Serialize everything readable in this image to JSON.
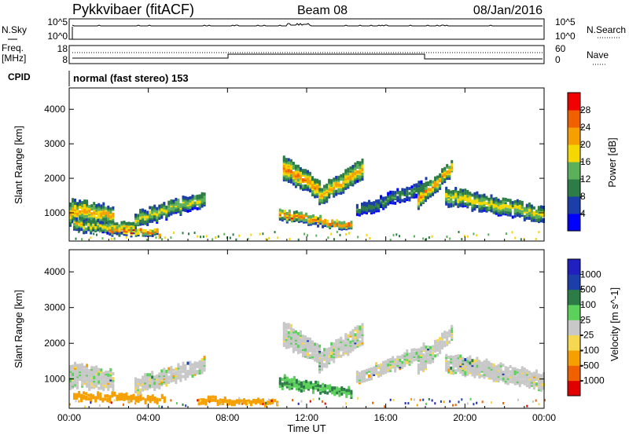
{
  "header": {
    "station": "Pykkvibaer (fitACF)",
    "beam": "Beam 08",
    "date": "08/Jan/2016"
  },
  "noise_panel": {
    "left_label": "N.Sky",
    "left_ticks": [
      "10^5",
      "10^0"
    ],
    "right_label": "N.Search",
    "right_ticks": [
      "10^5",
      "10^0"
    ]
  },
  "freq_panel": {
    "left_label_1": "Freq.",
    "left_label_2": "[MHz]",
    "left_ticks": [
      "18",
      "8"
    ],
    "right_label": "Nave",
    "right_ticks": [
      "60",
      "0"
    ]
  },
  "cpid": {
    "label": "CPID",
    "text": "normal (fast stereo) 153"
  },
  "colors": {
    "power_scale": [
      "#0000ff",
      "#1c3ea8",
      "#2d7b46",
      "#5db05a",
      "#f5d800",
      "#f5a000",
      "#f06000",
      "#f00000"
    ],
    "velocity_scale": [
      "#e00000",
      "#f06000",
      "#f5a000",
      "#f5d850",
      "#c8c8c8",
      "#5bd05b",
      "#2d7b46",
      "#1c3ea8",
      "#2020c0"
    ]
  },
  "chart_data": [
    {
      "type": "heatmap",
      "name": "power",
      "xlabel": "",
      "ylabel": "Slant Range [km]",
      "x_ticks": [
        "00:00",
        "04:00",
        "08:00",
        "12:00",
        "16:00",
        "20:00",
        "00:00"
      ],
      "x_range_hours": [
        0,
        24
      ],
      "y_ticks": [
        1000,
        2000,
        3000,
        4000
      ],
      "ylim": [
        180,
        4620
      ],
      "colorbar": {
        "label": "Power [dB]",
        "ticks": [
          "4",
          "8",
          "12",
          "16",
          "20",
          "24",
          "28"
        ],
        "range": [
          0,
          32
        ]
      },
      "bands": [
        {
          "t0": 0.0,
          "t1": 2.2,
          "r_center": [
            1050,
            950
          ],
          "r_width": [
            700,
            500
          ],
          "peak": 22
        },
        {
          "t0": 0.2,
          "t1": 3.3,
          "r_center": [
            650,
            600
          ],
          "r_width": [
            350,
            250
          ],
          "peak": 20
        },
        {
          "t0": 3.3,
          "t1": 6.9,
          "r_center": [
            800,
            1450
          ],
          "r_width": [
            450,
            400
          ],
          "peak": 18
        },
        {
          "t0": 2.0,
          "t1": 4.6,
          "r_center": [
            500,
            430
          ],
          "r_width": [
            220,
            150
          ],
          "peak": 28
        },
        {
          "t0": 10.6,
          "t1": 14.3,
          "r_center": [
            950,
            620
          ],
          "r_width": [
            300,
            200
          ],
          "peak": 27
        },
        {
          "t0": 10.8,
          "t1": 12.6,
          "r_center": [
            2300,
            1700
          ],
          "r_width": [
            700,
            500
          ],
          "peak": 25
        },
        {
          "t0": 12.6,
          "t1": 14.8,
          "r_center": [
            1500,
            2300
          ],
          "r_width": [
            500,
            600
          ],
          "peak": 22
        },
        {
          "t0": 14.5,
          "t1": 18.0,
          "r_center": [
            1050,
            1800
          ],
          "r_width": [
            300,
            400
          ],
          "peak": 12
        },
        {
          "t0": 17.6,
          "t1": 19.3,
          "r_center": [
            1400,
            2300
          ],
          "r_width": [
            500,
            400
          ],
          "peak": 24
        },
        {
          "t0": 19.0,
          "t1": 24.0,
          "r_center": [
            1500,
            950
          ],
          "r_width": [
            500,
            450
          ],
          "peak": 19
        }
      ]
    },
    {
      "type": "heatmap",
      "name": "velocity",
      "xlabel": "Time UT",
      "ylabel": "Slant Range [km]",
      "x_ticks": [
        "00:00",
        "04:00",
        "08:00",
        "12:00",
        "16:00",
        "20:00",
        "00:00"
      ],
      "x_range_hours": [
        0,
        24
      ],
      "y_ticks": [
        1000,
        2000,
        3000,
        4000
      ],
      "ylim": [
        180,
        4620
      ],
      "colorbar": {
        "label": "Velocity [m s^-1]",
        "ticks": [
          "1000",
          "500",
          "100",
          "25",
          "-25",
          "-100",
          "-500",
          "-1000"
        ]
      },
      "bands": [
        {
          "t0": 0.0,
          "t1": 2.2,
          "r_center": [
            1100,
            1000
          ],
          "r_width": [
            700,
            500
          ],
          "vel": 0
        },
        {
          "t0": 0.2,
          "t1": 4.8,
          "r_center": [
            560,
            450
          ],
          "r_width": [
            200,
            150
          ],
          "vel": -150
        },
        {
          "t0": 3.3,
          "t1": 6.9,
          "r_center": [
            800,
            1450
          ],
          "r_width": [
            450,
            400
          ],
          "vel": 0
        },
        {
          "t0": 6.5,
          "t1": 10.5,
          "r_center": [
            430,
            350
          ],
          "r_width": [
            150,
            100
          ],
          "vel": -100
        },
        {
          "t0": 10.6,
          "t1": 14.3,
          "r_center": [
            950,
            620
          ],
          "r_width": [
            300,
            200
          ],
          "vel": 90
        },
        {
          "t0": 10.8,
          "t1": 12.6,
          "r_center": [
            2300,
            1700
          ],
          "r_width": [
            700,
            500
          ],
          "vel": 0
        },
        {
          "t0": 12.6,
          "t1": 14.8,
          "r_center": [
            1500,
            2300
          ],
          "r_width": [
            500,
            600
          ],
          "vel": 0
        },
        {
          "t0": 14.5,
          "t1": 18.0,
          "r_center": [
            1050,
            1800
          ],
          "r_width": [
            300,
            400
          ],
          "vel": 0
        },
        {
          "t0": 17.6,
          "t1": 19.3,
          "r_center": [
            1400,
            2300
          ],
          "r_width": [
            500,
            400
          ],
          "vel": 0
        },
        {
          "t0": 19.0,
          "t1": 24.0,
          "r_center": [
            1500,
            950
          ],
          "r_width": [
            500,
            450
          ],
          "vel": 0
        }
      ]
    }
  ]
}
